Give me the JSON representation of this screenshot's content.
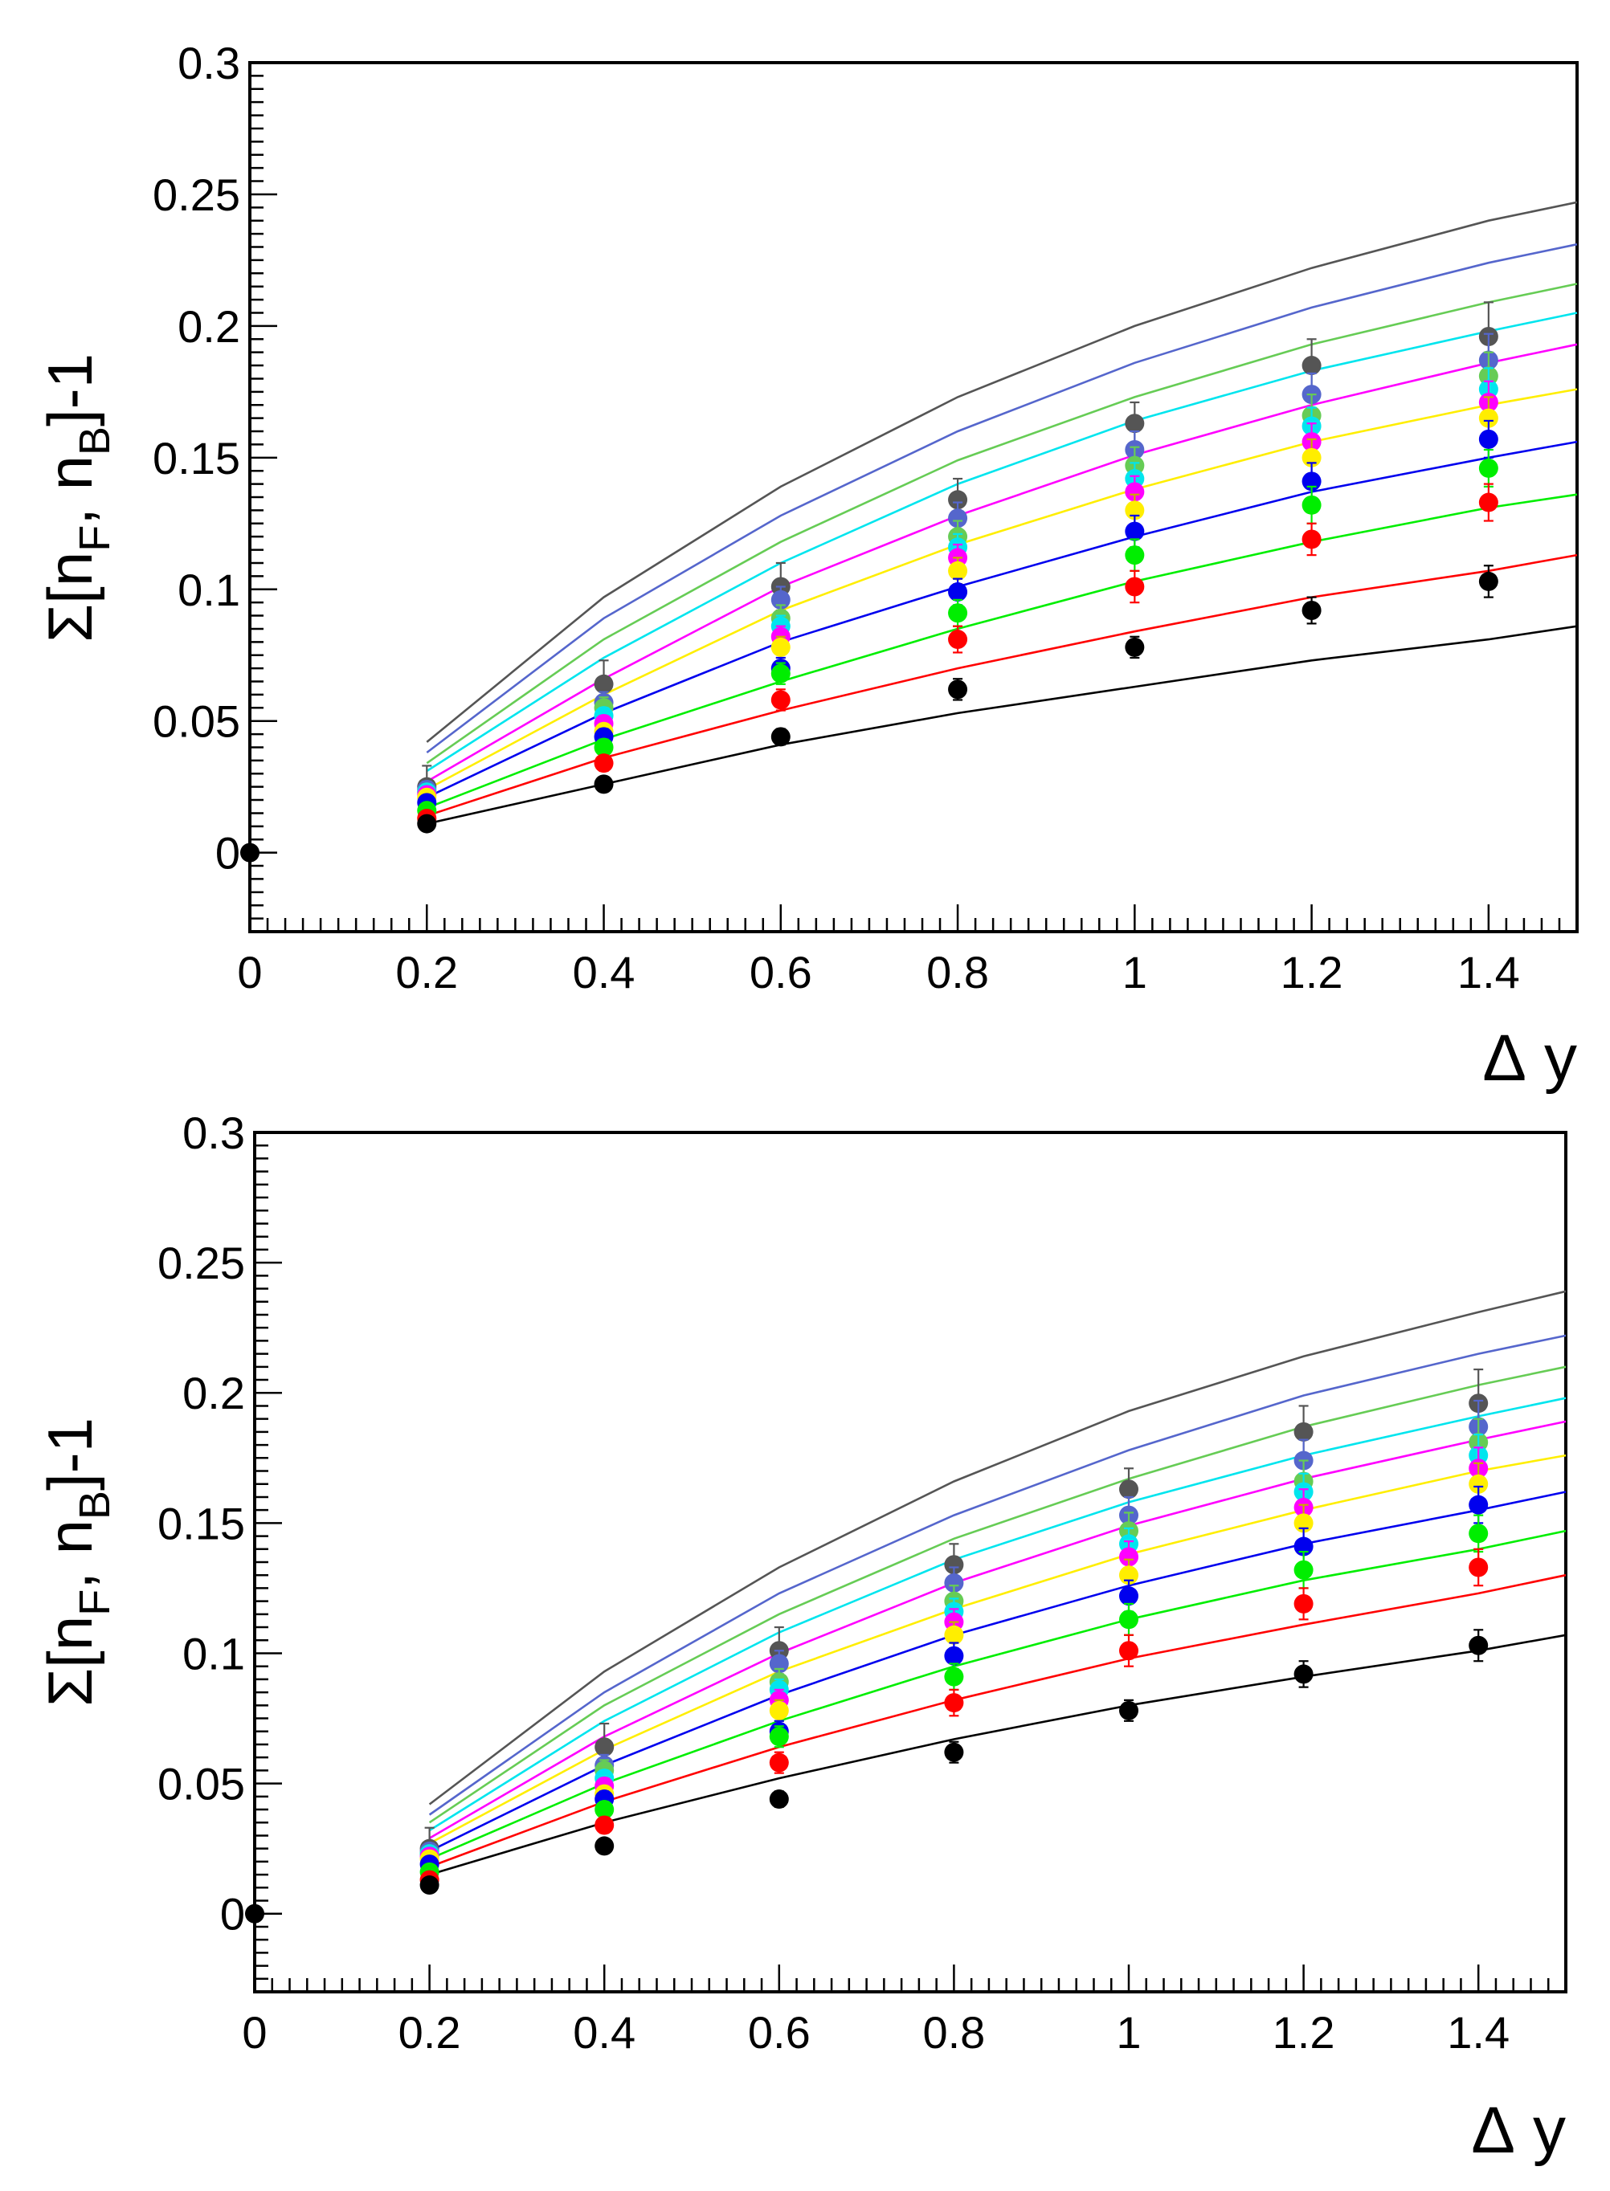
{
  "chart_data": [
    {
      "type": "scatter",
      "panel": "top",
      "xlabel": {
        "delta": "Δ",
        "var": "y"
      },
      "ylabel": {
        "sigma": "Σ",
        "open": "[n",
        "sub1": "F",
        "comma": ", n",
        "sub2": "B",
        "close": "]-1"
      },
      "xlim": [
        0,
        1.5
      ],
      "ylim": [
        -0.03,
        0.3
      ],
      "x_ticks": [
        0,
        0.2,
        0.4,
        0.6,
        0.8,
        1,
        1.2,
        1.4
      ],
      "x_tick_labels": [
        "0",
        "0.2",
        "0.4",
        "0.6",
        "0.8",
        "1",
        "1.2",
        "1.4"
      ],
      "y_ticks": [
        0,
        0.05,
        0.1,
        0.15,
        0.2,
        0.25,
        0.3
      ],
      "y_tick_labels": [
        "0",
        "0.05",
        "0.1",
        "0.15",
        "0.2",
        "0.25",
        "0.3"
      ],
      "origin_point": [
        0,
        0
      ],
      "x": [
        0.2,
        0.4,
        0.6,
        0.8,
        1.0,
        1.2,
        1.4
      ],
      "series": [
        {
          "name": "black",
          "color": "#000000",
          "points": [
            0.011,
            0.026,
            0.044,
            0.062,
            0.078,
            0.092,
            0.103
          ],
          "errors": [
            0.002,
            0.002,
            0.003,
            0.004,
            0.004,
            0.005,
            0.006
          ],
          "curve": [
            0.011,
            0.026,
            0.041,
            0.053,
            0.063,
            0.073,
            0.081,
            0.086
          ]
        },
        {
          "name": "red",
          "color": "#ff0000",
          "points": [
            0.013,
            0.034,
            0.058,
            0.081,
            0.101,
            0.119,
            0.133
          ],
          "errors": [
            0.002,
            0.003,
            0.004,
            0.005,
            0.006,
            0.006,
            0.007
          ],
          "curve": [
            0.014,
            0.036,
            0.054,
            0.07,
            0.084,
            0.097,
            0.107,
            0.113
          ]
        },
        {
          "name": "green",
          "color": "#00ee00",
          "points": [
            0.016,
            0.04,
            0.068,
            0.091,
            0.113,
            0.132,
            0.146
          ],
          "errors": [
            0.002,
            0.003,
            0.004,
            0.005,
            0.006,
            0.007,
            0.007
          ],
          "curve": [
            0.017,
            0.043,
            0.065,
            0.085,
            0.103,
            0.118,
            0.131,
            0.136
          ]
        },
        {
          "name": "blue",
          "color": "#0000ee",
          "points": [
            0.019,
            0.044,
            0.07,
            0.099,
            0.122,
            0.141,
            0.157
          ],
          "errors": [
            0.002,
            0.003,
            0.004,
            0.005,
            0.006,
            0.007,
            0.007
          ],
          "curve": [
            0.021,
            0.053,
            0.08,
            0.101,
            0.12,
            0.137,
            0.15,
            0.156
          ]
        },
        {
          "name": "yellow",
          "color": "#ffee00",
          "points": [
            0.021,
            0.046,
            0.078,
            0.107,
            0.13,
            0.15,
            0.165
          ],
          "errors": [
            0.002,
            0.003,
            0.004,
            0.005,
            0.006,
            0.007,
            0.008
          ],
          "curve": [
            0.024,
            0.06,
            0.092,
            0.117,
            0.138,
            0.156,
            0.17,
            0.176
          ]
        },
        {
          "name": "magenta",
          "color": "#ff00ff",
          "points": [
            0.022,
            0.049,
            0.082,
            0.112,
            0.137,
            0.156,
            0.171
          ],
          "errors": [
            0.002,
            0.003,
            0.004,
            0.005,
            0.006,
            0.007,
            0.008
          ],
          "curve": [
            0.027,
            0.066,
            0.101,
            0.128,
            0.151,
            0.17,
            0.186,
            0.193
          ]
        },
        {
          "name": "cyan",
          "color": "#00e5ee",
          "points": [
            0.023,
            0.052,
            0.086,
            0.116,
            0.142,
            0.162,
            0.176
          ],
          "errors": [
            0.002,
            0.003,
            0.004,
            0.005,
            0.006,
            0.007,
            0.008
          ],
          "curve": [
            0.031,
            0.074,
            0.11,
            0.14,
            0.164,
            0.183,
            0.198,
            0.205
          ]
        },
        {
          "name": "light-green",
          "color": "#66cc55",
          "points": [
            0.023,
            0.055,
            0.089,
            0.12,
            0.147,
            0.166,
            0.181
          ],
          "errors": [
            0.003,
            0.004,
            0.005,
            0.006,
            0.007,
            0.008,
            0.009
          ],
          "curve": [
            0.034,
            0.081,
            0.118,
            0.149,
            0.173,
            0.193,
            0.209,
            0.216
          ]
        },
        {
          "name": "slate-blue",
          "color": "#5566cc",
          "points": [
            0.024,
            0.057,
            0.096,
            0.127,
            0.153,
            0.174,
            0.187
          ],
          "errors": [
            0.003,
            0.004,
            0.005,
            0.006,
            0.007,
            0.008,
            0.01
          ],
          "curve": [
            0.038,
            0.089,
            0.128,
            0.16,
            0.186,
            0.207,
            0.224,
            0.231
          ]
        },
        {
          "name": "gray",
          "color": "#555555",
          "points": [
            0.025,
            0.064,
            0.101,
            0.134,
            0.163,
            0.185,
            0.196
          ],
          "errors": [
            0.008,
            0.009,
            0.009,
            0.008,
            0.008,
            0.01,
            0.013
          ],
          "curve": [
            0.042,
            0.097,
            0.139,
            0.173,
            0.2,
            0.222,
            0.24,
            0.247
          ]
        }
      ]
    },
    {
      "type": "scatter",
      "panel": "bottom",
      "xlabel": {
        "delta": "Δ",
        "var": "y"
      },
      "ylabel": {
        "sigma": "Σ",
        "open": "[n",
        "sub1": "F",
        "comma": ", n",
        "sub2": "B",
        "close": "]-1"
      },
      "xlim": [
        0,
        1.5
      ],
      "ylim": [
        -0.03,
        0.3
      ],
      "x_ticks": [
        0,
        0.2,
        0.4,
        0.6,
        0.8,
        1,
        1.2,
        1.4
      ],
      "x_tick_labels": [
        "0",
        "0.2",
        "0.4",
        "0.6",
        "0.8",
        "1",
        "1.2",
        "1.4"
      ],
      "y_ticks": [
        0,
        0.05,
        0.1,
        0.15,
        0.2,
        0.25,
        0.3
      ],
      "y_tick_labels": [
        "0",
        "0.05",
        "0.1",
        "0.15",
        "0.2",
        "0.25",
        "0.3"
      ],
      "origin_point": [
        0,
        0
      ],
      "x": [
        0.2,
        0.4,
        0.6,
        0.8,
        1.0,
        1.2,
        1.4
      ],
      "series": [
        {
          "name": "black",
          "color": "#000000",
          "points": [
            0.011,
            0.026,
            0.044,
            0.062,
            0.078,
            0.092,
            0.103
          ],
          "errors": [
            0.002,
            0.002,
            0.003,
            0.004,
            0.004,
            0.005,
            0.006
          ],
          "curve": [
            0.015,
            0.035,
            0.052,
            0.067,
            0.08,
            0.091,
            0.101,
            0.107
          ]
        },
        {
          "name": "red",
          "color": "#ff0000",
          "points": [
            0.013,
            0.034,
            0.058,
            0.081,
            0.101,
            0.119,
            0.133
          ],
          "errors": [
            0.002,
            0.003,
            0.004,
            0.005,
            0.006,
            0.006,
            0.007
          ],
          "curve": [
            0.018,
            0.043,
            0.064,
            0.082,
            0.098,
            0.111,
            0.123,
            0.13
          ]
        },
        {
          "name": "green",
          "color": "#00ee00",
          "points": [
            0.016,
            0.04,
            0.068,
            0.091,
            0.113,
            0.132,
            0.146
          ],
          "errors": [
            0.002,
            0.003,
            0.004,
            0.005,
            0.006,
            0.007,
            0.007
          ],
          "curve": [
            0.021,
            0.05,
            0.074,
            0.095,
            0.113,
            0.128,
            0.14,
            0.147
          ]
        },
        {
          "name": "blue",
          "color": "#0000ee",
          "points": [
            0.019,
            0.044,
            0.07,
            0.099,
            0.122,
            0.141,
            0.157
          ],
          "errors": [
            0.002,
            0.003,
            0.004,
            0.005,
            0.006,
            0.007,
            0.007
          ],
          "curve": [
            0.024,
            0.057,
            0.084,
            0.107,
            0.126,
            0.142,
            0.155,
            0.162
          ]
        },
        {
          "name": "yellow",
          "color": "#ffee00",
          "points": [
            0.021,
            0.046,
            0.078,
            0.107,
            0.13,
            0.15,
            0.165
          ],
          "errors": [
            0.002,
            0.003,
            0.004,
            0.005,
            0.006,
            0.007,
            0.008
          ],
          "curve": [
            0.027,
            0.063,
            0.093,
            0.117,
            0.138,
            0.155,
            0.17,
            0.176
          ]
        },
        {
          "name": "magenta",
          "color": "#ff00ff",
          "points": [
            0.022,
            0.049,
            0.082,
            0.112,
            0.137,
            0.156,
            0.171
          ],
          "errors": [
            0.002,
            0.003,
            0.004,
            0.005,
            0.006,
            0.007,
            0.008
          ],
          "curve": [
            0.029,
            0.068,
            0.1,
            0.127,
            0.149,
            0.167,
            0.182,
            0.189
          ]
        },
        {
          "name": "cyan",
          "color": "#00e5ee",
          "points": [
            0.023,
            0.052,
            0.086,
            0.116,
            0.142,
            0.162,
            0.176
          ],
          "errors": [
            0.002,
            0.003,
            0.004,
            0.005,
            0.006,
            0.007,
            0.008
          ],
          "curve": [
            0.032,
            0.074,
            0.108,
            0.136,
            0.158,
            0.176,
            0.191,
            0.198
          ]
        },
        {
          "name": "light-green",
          "color": "#66cc55",
          "points": [
            0.023,
            0.055,
            0.089,
            0.12,
            0.147,
            0.166,
            0.181
          ],
          "errors": [
            0.003,
            0.004,
            0.005,
            0.006,
            0.007,
            0.008,
            0.009
          ],
          "curve": [
            0.035,
            0.08,
            0.115,
            0.144,
            0.167,
            0.187,
            0.203,
            0.21
          ]
        },
        {
          "name": "slate-blue",
          "color": "#5566cc",
          "points": [
            0.024,
            0.057,
            0.096,
            0.127,
            0.153,
            0.174,
            0.187
          ],
          "errors": [
            0.003,
            0.004,
            0.005,
            0.006,
            0.007,
            0.008,
            0.01
          ],
          "curve": [
            0.038,
            0.085,
            0.123,
            0.153,
            0.178,
            0.199,
            0.215,
            0.222
          ]
        },
        {
          "name": "gray",
          "color": "#555555",
          "points": [
            0.025,
            0.064,
            0.101,
            0.134,
            0.163,
            0.185,
            0.196
          ],
          "errors": [
            0.008,
            0.009,
            0.009,
            0.008,
            0.008,
            0.01,
            0.013
          ],
          "curve": [
            0.042,
            0.093,
            0.133,
            0.166,
            0.193,
            0.214,
            0.231,
            0.239
          ]
        }
      ]
    }
  ]
}
